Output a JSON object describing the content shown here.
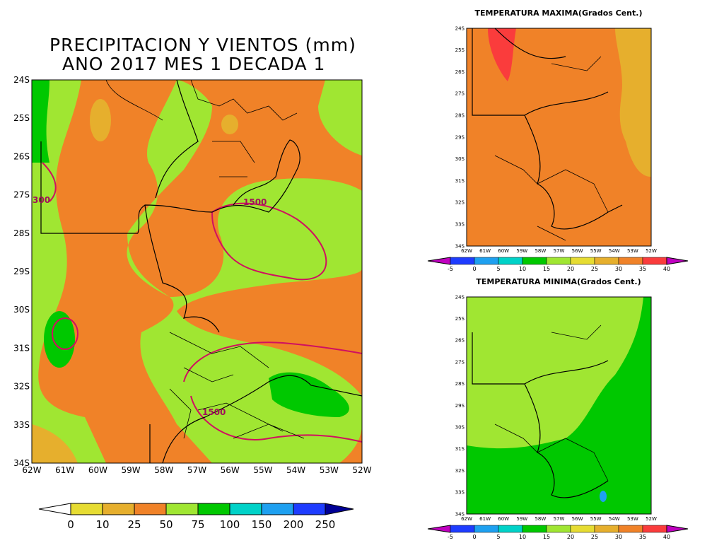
{
  "main": {
    "title": [
      "PRECIPITACION Y VIENTOS (mm)",
      "ANO 2017 MES 1 DECADA 1"
    ],
    "lat_labels": [
      "24S",
      "25S",
      "26S",
      "27S",
      "28S",
      "29S",
      "30S",
      "31S",
      "32S",
      "33S",
      "34S"
    ],
    "lon_labels": [
      "62W",
      "61W",
      "60W",
      "59W",
      "58W",
      "57W",
      "56W",
      "55W",
      "54W",
      "53W",
      "52W"
    ],
    "contour_labels": [
      "300",
      "1500",
      "1500"
    ],
    "colorbar": [
      "0",
      "10",
      "25",
      "50",
      "75",
      "100",
      "150",
      "200",
      "250"
    ]
  },
  "max_panel": {
    "title": "TEMPERATURA MAXIMA(Grados Cent.)",
    "lat_labels": [
      "24S",
      "25S",
      "26S",
      "27S",
      "28S",
      "29S",
      "30S",
      "31S",
      "32S",
      "33S",
      "34S"
    ],
    "lon_labels": [
      "62W",
      "61W",
      "60W",
      "59W",
      "58W",
      "57W",
      "56W",
      "55W",
      "54W",
      "53W",
      "52W"
    ],
    "colorbar": [
      "-5",
      "0",
      "5",
      "10",
      "15",
      "20",
      "25",
      "30",
      "35",
      "40"
    ]
  },
  "min_panel": {
    "title": "TEMPERATURA MINIMA(Grados Cent.)",
    "lat_labels": [
      "24S",
      "25S",
      "26S",
      "27S",
      "28S",
      "29S",
      "30S",
      "31S",
      "32S",
      "33S",
      "34S"
    ],
    "lon_labels": [
      "62W",
      "61W",
      "60W",
      "59W",
      "58W",
      "57W",
      "56W",
      "55W",
      "54W",
      "53W",
      "52W"
    ],
    "colorbar": [
      "-5",
      "0",
      "5",
      "10",
      "15",
      "20",
      "25",
      "30",
      "35",
      "40"
    ]
  }
}
